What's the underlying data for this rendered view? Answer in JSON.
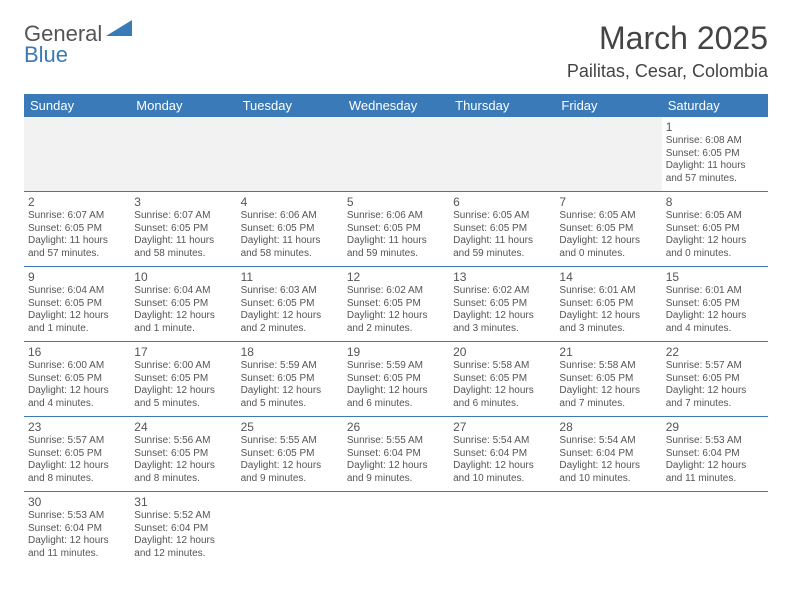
{
  "logo": {
    "part1": "General",
    "part2": "Blue",
    "triangle_color": "#3a7ab8"
  },
  "title": "March 2025",
  "location": "Pailitas, Cesar, Colombia",
  "weekdays": [
    "Sunday",
    "Monday",
    "Tuesday",
    "Wednesday",
    "Thursday",
    "Friday",
    "Saturday"
  ],
  "header_bg": "#3a7ab8",
  "border_color": "#3a7ab8",
  "blank_bg": "#f2f2f2",
  "first_day_col": 6,
  "days": [
    {
      "n": "1",
      "sr": "Sunrise: 6:08 AM",
      "ss": "Sunset: 6:05 PM",
      "dl": "Daylight: 11 hours and 57 minutes."
    },
    {
      "n": "2",
      "sr": "Sunrise: 6:07 AM",
      "ss": "Sunset: 6:05 PM",
      "dl": "Daylight: 11 hours and 57 minutes."
    },
    {
      "n": "3",
      "sr": "Sunrise: 6:07 AM",
      "ss": "Sunset: 6:05 PM",
      "dl": "Daylight: 11 hours and 58 minutes."
    },
    {
      "n": "4",
      "sr": "Sunrise: 6:06 AM",
      "ss": "Sunset: 6:05 PM",
      "dl": "Daylight: 11 hours and 58 minutes."
    },
    {
      "n": "5",
      "sr": "Sunrise: 6:06 AM",
      "ss": "Sunset: 6:05 PM",
      "dl": "Daylight: 11 hours and 59 minutes."
    },
    {
      "n": "6",
      "sr": "Sunrise: 6:05 AM",
      "ss": "Sunset: 6:05 PM",
      "dl": "Daylight: 11 hours and 59 minutes."
    },
    {
      "n": "7",
      "sr": "Sunrise: 6:05 AM",
      "ss": "Sunset: 6:05 PM",
      "dl": "Daylight: 12 hours and 0 minutes."
    },
    {
      "n": "8",
      "sr": "Sunrise: 6:05 AM",
      "ss": "Sunset: 6:05 PM",
      "dl": "Daylight: 12 hours and 0 minutes."
    },
    {
      "n": "9",
      "sr": "Sunrise: 6:04 AM",
      "ss": "Sunset: 6:05 PM",
      "dl": "Daylight: 12 hours and 1 minute."
    },
    {
      "n": "10",
      "sr": "Sunrise: 6:04 AM",
      "ss": "Sunset: 6:05 PM",
      "dl": "Daylight: 12 hours and 1 minute."
    },
    {
      "n": "11",
      "sr": "Sunrise: 6:03 AM",
      "ss": "Sunset: 6:05 PM",
      "dl": "Daylight: 12 hours and 2 minutes."
    },
    {
      "n": "12",
      "sr": "Sunrise: 6:02 AM",
      "ss": "Sunset: 6:05 PM",
      "dl": "Daylight: 12 hours and 2 minutes."
    },
    {
      "n": "13",
      "sr": "Sunrise: 6:02 AM",
      "ss": "Sunset: 6:05 PM",
      "dl": "Daylight: 12 hours and 3 minutes."
    },
    {
      "n": "14",
      "sr": "Sunrise: 6:01 AM",
      "ss": "Sunset: 6:05 PM",
      "dl": "Daylight: 12 hours and 3 minutes."
    },
    {
      "n": "15",
      "sr": "Sunrise: 6:01 AM",
      "ss": "Sunset: 6:05 PM",
      "dl": "Daylight: 12 hours and 4 minutes."
    },
    {
      "n": "16",
      "sr": "Sunrise: 6:00 AM",
      "ss": "Sunset: 6:05 PM",
      "dl": "Daylight: 12 hours and 4 minutes."
    },
    {
      "n": "17",
      "sr": "Sunrise: 6:00 AM",
      "ss": "Sunset: 6:05 PM",
      "dl": "Daylight: 12 hours and 5 minutes."
    },
    {
      "n": "18",
      "sr": "Sunrise: 5:59 AM",
      "ss": "Sunset: 6:05 PM",
      "dl": "Daylight: 12 hours and 5 minutes."
    },
    {
      "n": "19",
      "sr": "Sunrise: 5:59 AM",
      "ss": "Sunset: 6:05 PM",
      "dl": "Daylight: 12 hours and 6 minutes."
    },
    {
      "n": "20",
      "sr": "Sunrise: 5:58 AM",
      "ss": "Sunset: 6:05 PM",
      "dl": "Daylight: 12 hours and 6 minutes."
    },
    {
      "n": "21",
      "sr": "Sunrise: 5:58 AM",
      "ss": "Sunset: 6:05 PM",
      "dl": "Daylight: 12 hours and 7 minutes."
    },
    {
      "n": "22",
      "sr": "Sunrise: 5:57 AM",
      "ss": "Sunset: 6:05 PM",
      "dl": "Daylight: 12 hours and 7 minutes."
    },
    {
      "n": "23",
      "sr": "Sunrise: 5:57 AM",
      "ss": "Sunset: 6:05 PM",
      "dl": "Daylight: 12 hours and 8 minutes."
    },
    {
      "n": "24",
      "sr": "Sunrise: 5:56 AM",
      "ss": "Sunset: 6:05 PM",
      "dl": "Daylight: 12 hours and 8 minutes."
    },
    {
      "n": "25",
      "sr": "Sunrise: 5:55 AM",
      "ss": "Sunset: 6:05 PM",
      "dl": "Daylight: 12 hours and 9 minutes."
    },
    {
      "n": "26",
      "sr": "Sunrise: 5:55 AM",
      "ss": "Sunset: 6:04 PM",
      "dl": "Daylight: 12 hours and 9 minutes."
    },
    {
      "n": "27",
      "sr": "Sunrise: 5:54 AM",
      "ss": "Sunset: 6:04 PM",
      "dl": "Daylight: 12 hours and 10 minutes."
    },
    {
      "n": "28",
      "sr": "Sunrise: 5:54 AM",
      "ss": "Sunset: 6:04 PM",
      "dl": "Daylight: 12 hours and 10 minutes."
    },
    {
      "n": "29",
      "sr": "Sunrise: 5:53 AM",
      "ss": "Sunset: 6:04 PM",
      "dl": "Daylight: 12 hours and 11 minutes."
    },
    {
      "n": "30",
      "sr": "Sunrise: 5:53 AM",
      "ss": "Sunset: 6:04 PM",
      "dl": "Daylight: 12 hours and 11 minutes."
    },
    {
      "n": "31",
      "sr": "Sunrise: 5:52 AM",
      "ss": "Sunset: 6:04 PM",
      "dl": "Daylight: 12 hours and 12 minutes."
    }
  ]
}
